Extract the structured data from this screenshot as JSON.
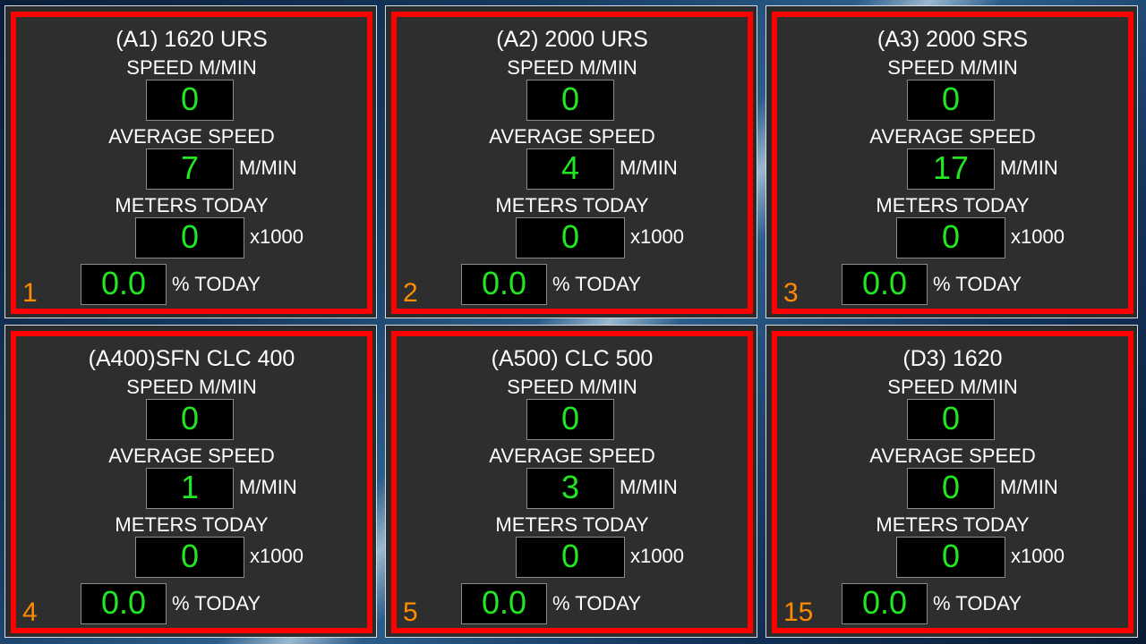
{
  "labels": {
    "speed": "SPEED M/MIN",
    "avg_speed": "AVERAGE SPEED",
    "avg_unit": "M/MIN",
    "meters_today": "METERS TODAY",
    "meters_unit": "x1000",
    "percent_unit": "% TODAY"
  },
  "colors": {
    "frame_border": "#ff0000",
    "value_text": "#22e622",
    "index_text": "#ff8c00",
    "panel_bg": "#2e2e2e"
  },
  "machines": [
    {
      "title": "(A1) 1620 URS",
      "speed": "0",
      "avg_speed": "7",
      "meters_today": "0",
      "percent_today": "0.0",
      "index": "1"
    },
    {
      "title": "(A2) 2000 URS",
      "speed": "0",
      "avg_speed": "4",
      "meters_today": "0",
      "percent_today": "0.0",
      "index": "2"
    },
    {
      "title": "(A3) 2000 SRS",
      "speed": "0",
      "avg_speed": "17",
      "meters_today": "0",
      "percent_today": "0.0",
      "index": "3"
    },
    {
      "title": "(A400)SFN CLC 400",
      "speed": "0",
      "avg_speed": "1",
      "meters_today": "0",
      "percent_today": "0.0",
      "index": "4"
    },
    {
      "title": "(A500) CLC 500",
      "speed": "0",
      "avg_speed": "3",
      "meters_today": "0",
      "percent_today": "0.0",
      "index": "5"
    },
    {
      "title": "(D3) 1620",
      "speed": "0",
      "avg_speed": "0",
      "meters_today": "0",
      "percent_today": "0.0",
      "index": "15"
    }
  ]
}
